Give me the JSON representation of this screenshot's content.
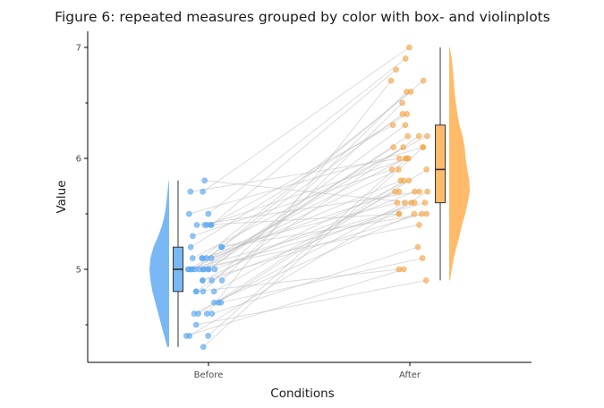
{
  "chart_data": {
    "type": "raincloud",
    "title": "Figure 6: repeated measures grouped by color with box- and violinplots",
    "xlabel": "Conditions",
    "ylabel": "Value",
    "categories": [
      "Before",
      "After"
    ],
    "ylim": [
      4.18,
      7.1
    ],
    "yticks": [
      5,
      6,
      7
    ],
    "y_minor_ticks": [
      4.5,
      5.5,
      6.5
    ],
    "grid": false,
    "colors": {
      "Before": "#5aa7f0",
      "After": "#f5a64a",
      "Before_fill": "#79b8f5",
      "After_fill": "#ffba6a",
      "lines": "#bdbdbd"
    },
    "pairs": [
      [
        5.8,
        5.6
      ],
      [
        5.7,
        6.0
      ],
      [
        5.7,
        7.0
      ],
      [
        5.5,
        6.1
      ],
      [
        5.5,
        6.9
      ],
      [
        5.4,
        5.7
      ],
      [
        5.4,
        6.3
      ],
      [
        5.4,
        5.5
      ],
      [
        5.4,
        6.8
      ],
      [
        5.4,
        6.0
      ],
      [
        5.3,
        5.9
      ],
      [
        5.2,
        5.5
      ],
      [
        5.2,
        6.4
      ],
      [
        5.2,
        5.6
      ],
      [
        5.1,
        6.6
      ],
      [
        5.1,
        5.8
      ],
      [
        5.1,
        6.2
      ],
      [
        5.1,
        5.7
      ],
      [
        5.1,
        6.4
      ],
      [
        5.0,
        5.4
      ],
      [
        5.0,
        6.1
      ],
      [
        5.0,
        5.6
      ],
      [
        5.0,
        6.7
      ],
      [
        5.0,
        5.5
      ],
      [
        5.0,
        6.3
      ],
      [
        5.0,
        5.7
      ],
      [
        5.0,
        5.9
      ],
      [
        5.0,
        6.1
      ],
      [
        5.0,
        6.0
      ],
      [
        4.9,
        5.6
      ],
      [
        4.9,
        6.5
      ],
      [
        4.9,
        5.8
      ],
      [
        4.9,
        5.5
      ],
      [
        4.8,
        6.6
      ],
      [
        4.8,
        5.0
      ],
      [
        4.8,
        5.7
      ],
      [
        4.8,
        6.2
      ],
      [
        4.7,
        5.9
      ],
      [
        4.7,
        5.1
      ],
      [
        4.7,
        5.5
      ],
      [
        4.6,
        6.7
      ],
      [
        4.6,
        5.8
      ],
      [
        4.6,
        5.6
      ],
      [
        4.6,
        5.2
      ],
      [
        4.5,
        4.9
      ],
      [
        4.4,
        5.0
      ],
      [
        4.4,
        6.0
      ],
      [
        4.4,
        5.7
      ],
      [
        4.3,
        6.1
      ],
      [
        5.0,
        6.2
      ]
    ],
    "boxplots": [
      {
        "name": "Before",
        "whisker_low": 4.3,
        "q1": 4.8,
        "median": 5.0,
        "q3": 5.2,
        "whisker_high": 5.8
      },
      {
        "name": "After",
        "whisker_low": 4.9,
        "q1": 5.6,
        "median": 5.9,
        "q3": 6.3,
        "whisker_high": 7.0
      }
    ],
    "violins": [
      {
        "name": "Before",
        "min": 4.3,
        "max": 5.8,
        "side": "left",
        "density_y": [
          4.3,
          4.4,
          4.5,
          4.6,
          4.7,
          4.8,
          4.9,
          5.0,
          5.1,
          5.2,
          5.3,
          5.4,
          5.5,
          5.6,
          5.7,
          5.8
        ],
        "density": [
          0.1,
          0.25,
          0.4,
          0.55,
          0.7,
          0.85,
          0.95,
          1.0,
          0.95,
          0.8,
          0.55,
          0.35,
          0.22,
          0.14,
          0.08,
          0.02
        ]
      },
      {
        "name": "After",
        "min": 4.9,
        "max": 7.0,
        "side": "right",
        "density_y": [
          4.9,
          5.0,
          5.1,
          5.2,
          5.3,
          5.4,
          5.5,
          5.6,
          5.7,
          5.8,
          5.9,
          6.0,
          6.1,
          6.2,
          6.3,
          6.4,
          6.5,
          6.6,
          6.7,
          6.8,
          6.9,
          7.0
        ],
        "density": [
          0.05,
          0.12,
          0.22,
          0.35,
          0.5,
          0.62,
          0.78,
          0.9,
          1.0,
          0.98,
          0.88,
          0.8,
          0.75,
          0.65,
          0.5,
          0.4,
          0.32,
          0.26,
          0.22,
          0.18,
          0.12,
          0.03
        ]
      }
    ]
  }
}
